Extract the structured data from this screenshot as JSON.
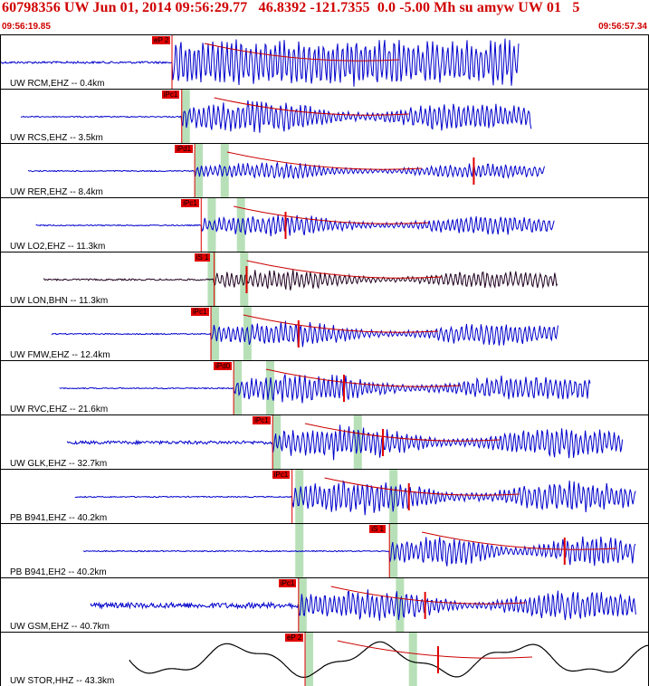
{
  "header": {
    "title": "60798356 UW Jun 01, 2014 09:56:29.77   46.8392 -121.7355  0.0 -5.00 Mh su amyw UW 01   5",
    "time_start": "09:56:19.85",
    "time_end": "09:56:57.34"
  },
  "colors": {
    "header_text": "#d00000",
    "trace_blue": "#0000cc",
    "trace_dark": "#200020",
    "trace_black": "#000000",
    "pick_red": "#e00000",
    "window_green": "#b8e0b8",
    "theoretical_curve_red": "#cc0000",
    "theoretical_curve_black": "#000000"
  },
  "traces": [
    {
      "label": "UW RCM,EHZ -- 0.4km",
      "pick": "eP 2",
      "color": "blue",
      "onset": 0.265,
      "end": 0.8,
      "amp": 0.45,
      "noise": 0.04,
      "green": [],
      "s_pick": null
    },
    {
      "label": "UW RCS,EHZ -- 3.5km",
      "pick": "iPc1",
      "color": "blue",
      "onset": 0.28,
      "end": 0.82,
      "amp": 0.4,
      "noise": 0.02,
      "green": [
        0.28
      ],
      "s_pick": null
    },
    {
      "label": "UW RER,EHZ -- 8.4km",
      "pick": "iPd1",
      "color": "blue",
      "onset": 0.3,
      "end": 0.84,
      "amp": 0.2,
      "noise": 0.02,
      "green": [
        0.3,
        0.34
      ],
      "s_pick": 0.73
    },
    {
      "label": "UW LO2,EHZ -- 11.3km",
      "pick": "iPc1",
      "color": "blue",
      "onset": 0.31,
      "end": 0.855,
      "amp": 0.25,
      "noise": 0.02,
      "green": [
        0.32,
        0.365
      ],
      "s_pick": 0.44
    },
    {
      "label": "UW LON,BHN -- 11.3km",
      "pick": "iS 1",
      "color": "dark",
      "onset": 0.33,
      "end": 0.86,
      "amp": 0.25,
      "noise": 0.03,
      "green": [
        0.32,
        0.37
      ],
      "s_pick": 0.38
    },
    {
      "label": "UW FMW,EHZ -- 12.4km",
      "pick": "iPc1",
      "color": "blue",
      "onset": 0.325,
      "end": 0.86,
      "amp": 0.3,
      "noise": 0.02,
      "green": [
        0.325,
        0.375
      ],
      "s_pick": 0.46
    },
    {
      "label": "UW RVC,EHZ -- 21.6km",
      "pick": "iPd0",
      "color": "blue",
      "onset": 0.36,
      "end": 0.91,
      "amp": 0.35,
      "noise": 0.02,
      "green": [
        0.36,
        0.41
      ],
      "s_pick": 0.53
    },
    {
      "label": "UW GLK,EHZ -- 32.7km",
      "pick": "iPc1",
      "color": "blue",
      "onset": 0.42,
      "end": 0.96,
      "amp": 0.4,
      "noise": 0.06,
      "green": [
        0.42,
        0.545
      ],
      "s_pick": 0.59
    },
    {
      "label": "PB B941,EHZ -- 40.2km",
      "pick": "iPc1",
      "color": "blue",
      "onset": 0.45,
      "end": 0.98,
      "amp": 0.4,
      "noise": 0.02,
      "green": [
        0.455,
        0.6
      ],
      "s_pick": 0.63
    },
    {
      "label": "PB B941,EH2 -- 40.2km",
      "pick": "iS 1",
      "color": "blue",
      "onset": 0.6,
      "end": 0.98,
      "amp": 0.4,
      "noise": 0.02,
      "green": [
        0.455,
        0.6
      ],
      "s_pick": 0.87
    },
    {
      "label": "UW GSM,EHZ -- 40.7km",
      "pick": "iPc1",
      "color": "blue",
      "onset": 0.46,
      "end": 0.98,
      "amp": 0.4,
      "noise": 0.1,
      "green": [
        0.46,
        0.61
      ],
      "s_pick": 0.655
    },
    {
      "label": "UW STOR,HHZ -- 43.3km",
      "pick": "eP 2",
      "color": "black",
      "onset": 0.47,
      "end": 1.0,
      "amp": 0.35,
      "noise": 0.25,
      "green": [
        0.47,
        0.63
      ],
      "s_pick": 0.675
    }
  ]
}
